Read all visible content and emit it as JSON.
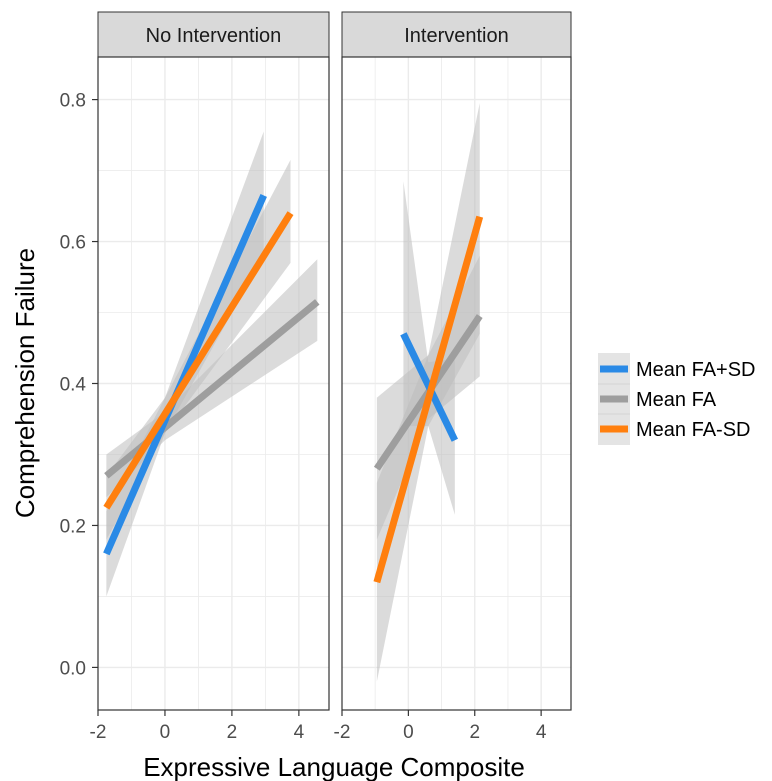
{
  "chart_data": {
    "type": "line",
    "xlabel": "Expressive Language Composite",
    "ylabel": "Comprehension Failure",
    "xlim": [
      -2.0,
      4.9
    ],
    "ylim": [
      -0.06,
      0.86
    ],
    "x_ticks": [
      -2,
      0,
      2,
      4
    ],
    "y_ticks": [
      0.0,
      0.2,
      0.4,
      0.6,
      0.8
    ],
    "y_tick_labels": [
      "0.0",
      "0.2",
      "0.4",
      "0.6",
      "0.8"
    ],
    "grid": true,
    "legend_position": "right",
    "colors": {
      "Mean FA+SD": "#2a8ae6",
      "Mean FA": "#9e9e9e",
      "Mean FA-SD": "#ff7f0e"
    },
    "band_color": "#bdbdbd",
    "panels": [
      {
        "label": "No Intervention",
        "series": [
          {
            "name": "Mean FA+SD",
            "x": [
              -1.75,
              2.95
            ],
            "y": [
              0.16,
              0.665
            ],
            "band": {
              "x": [
                -1.75,
                0.0,
                2.95
              ],
              "lower": [
                0.1,
                0.33,
                0.58
              ],
              "upper": [
                0.22,
                0.38,
                0.755
              ]
            }
          },
          {
            "name": "Mean FA",
            "x": [
              -1.75,
              4.55
            ],
            "y": [
              0.27,
              0.515
            ],
            "band": {
              "x": [
                -1.75,
                0.0,
                4.55
              ],
              "lower": [
                0.24,
                0.32,
                0.46
              ],
              "upper": [
                0.3,
                0.36,
                0.575
              ]
            }
          },
          {
            "name": "Mean FA-SD",
            "x": [
              -1.75,
              3.75
            ],
            "y": [
              0.225,
              0.64
            ],
            "band": {
              "x": [
                -1.75,
                0.0,
                3.75
              ],
              "lower": [
                0.18,
                0.33,
                0.57
              ],
              "upper": [
                0.27,
                0.38,
                0.715
              ]
            }
          }
        ]
      },
      {
        "label": "Intervention",
        "series": [
          {
            "name": "Mean FA+SD",
            "x": [
              -0.15,
              1.4
            ],
            "y": [
              0.47,
              0.32
            ],
            "band": {
              "x": [
                -0.15,
                0.6,
                1.4
              ],
              "lower": [
                0.34,
                0.34,
                0.215
              ],
              "upper": [
                0.685,
                0.43,
                0.435
              ]
            }
          },
          {
            "name": "Mean FA",
            "x": [
              -0.95,
              2.15
            ],
            "y": [
              0.28,
              0.495
            ],
            "band": {
              "x": [
                -0.95,
                0.6,
                2.15
              ],
              "lower": [
                0.18,
                0.35,
                0.41
              ],
              "upper": [
                0.38,
                0.44,
                0.58
              ]
            }
          },
          {
            "name": "Mean FA-SD",
            "x": [
              -0.95,
              2.15
            ],
            "y": [
              0.12,
              0.635
            ],
            "band": {
              "x": [
                -0.95,
                0.6,
                2.15
              ],
              "lower": [
                -0.02,
                0.34,
                0.47
              ],
              "upper": [
                0.26,
                0.44,
                0.795
              ]
            }
          }
        ]
      }
    ],
    "legend": [
      "Mean FA+SD",
      "Mean FA",
      "Mean FA-SD"
    ]
  }
}
